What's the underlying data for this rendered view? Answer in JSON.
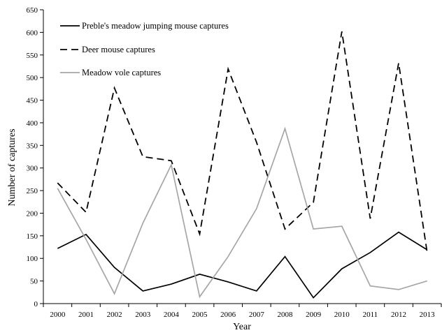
{
  "chart_data": {
    "type": "line",
    "title": "",
    "xlabel": "Year",
    "ylabel": "Number of captures",
    "ylim": [
      0,
      650
    ],
    "yticks": [
      0,
      50,
      100,
      150,
      200,
      250,
      300,
      350,
      400,
      450,
      500,
      550,
      600,
      650
    ],
    "categories": [
      "2000",
      "2001",
      "2002",
      "2003",
      "2004",
      "2005",
      "2006",
      "2007",
      "2008",
      "2009",
      "2010",
      "2011",
      "2012",
      "2013"
    ],
    "grid": false,
    "legend_position": "top-left",
    "series": [
      {
        "name": "Preble's meadow jumping mouse captures",
        "color": "#000000",
        "style": "solid",
        "values": [
          122,
          153,
          80,
          28,
          43,
          65,
          48,
          28,
          104,
          13,
          77,
          113,
          158,
          119
        ]
      },
      {
        "name": "Deer mouse captures",
        "color": "#000000",
        "style": "dashed",
        "values": [
          267,
          202,
          477,
          325,
          316,
          154,
          519,
          357,
          165,
          224,
          602,
          188,
          532,
          114
        ]
      },
      {
        "name": "Meadow vole captures",
        "color": "#a6a6a6",
        "style": "solid",
        "values": [
          255,
          142,
          22,
          178,
          307,
          15,
          104,
          210,
          387,
          165,
          171,
          39,
          31,
          50
        ]
      }
    ]
  }
}
